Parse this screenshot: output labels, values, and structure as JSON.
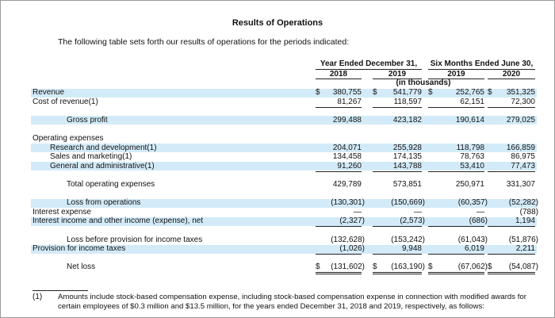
{
  "header": {
    "title": "Results of Operations",
    "intro": "The following table sets forth our results of operations for the periods indicated:"
  },
  "table": {
    "column_groups": [
      {
        "label": "Year Ended December 31,",
        "years": [
          "2018",
          "2019"
        ]
      },
      {
        "label": "Six Months Ended June 30,",
        "years": [
          "2019",
          "2020"
        ]
      }
    ],
    "unit": "(in thousands)",
    "sections": [
      [
        {
          "label": "Revenue",
          "currency": "$",
          "values": [
            "380,755",
            "541,779",
            "252,765",
            "351,325"
          ]
        },
        {
          "label": "Cost of revenue(1)",
          "values": [
            "81,267",
            "118,597",
            "62,151",
            "72,300"
          ]
        }
      ],
      [
        {
          "label": "Gross profit",
          "style": "total",
          "values": [
            "299,488",
            "423,182",
            "190,614",
            "279,025"
          ]
        }
      ],
      [
        {
          "label": "Operating expenses",
          "items": [
            {
              "label": "Research and development(1)",
              "values": [
                "204,071",
                "255,928",
                "118,798",
                "166,859"
              ]
            },
            {
              "label": "Sales and marketing(1)",
              "values": [
                "134,458",
                "174,135",
                "78,763",
                "86,975"
              ]
            },
            {
              "label": "General and administrative(1)",
              "values": [
                "91,260",
                "143,788",
                "53,410",
                "77,473"
              ]
            }
          ]
        }
      ],
      [
        {
          "label": "Total operating expenses",
          "style": "total",
          "values": [
            "429,789",
            "573,851",
            "250,971",
            "331,307"
          ]
        }
      ],
      [
        {
          "label": "Loss from operations",
          "style": "total",
          "values": [
            "(130,301)",
            "(150,669)",
            "(60,357)",
            "(52,282)"
          ]
        },
        {
          "label": "Interest expense",
          "values": [
            "—",
            "—",
            "—",
            "(788)"
          ]
        },
        {
          "label": "Interest income and other income (expense), net",
          "values": [
            "(2,327)",
            "(2,573)",
            "(686)",
            "1,194"
          ]
        }
      ],
      [
        {
          "label": "Loss before provision for income taxes",
          "style": "total",
          "values": [
            "(132,628)",
            "(153,242)",
            "(61,043)",
            "(51,876)"
          ]
        },
        {
          "label": "Provision for income taxes",
          "values": [
            "(1,026)",
            "9,948",
            "6,019",
            "2,211"
          ]
        }
      ],
      [
        {
          "label": "Net loss",
          "style": "net",
          "currency": "$",
          "values": [
            "(131,602)",
            "(163,190)",
            "(67,062)",
            "(54,087)"
          ]
        }
      ]
    ]
  },
  "footnote": {
    "marker": "(1)",
    "text": "Amounts include stock-based compensation expense, including stock-based compensation expense in connection with modified awards for certain employees of $0.3 million and $13.5 million, for the years ended December 31, 2018 and 2019, respectively, as follows:"
  }
}
